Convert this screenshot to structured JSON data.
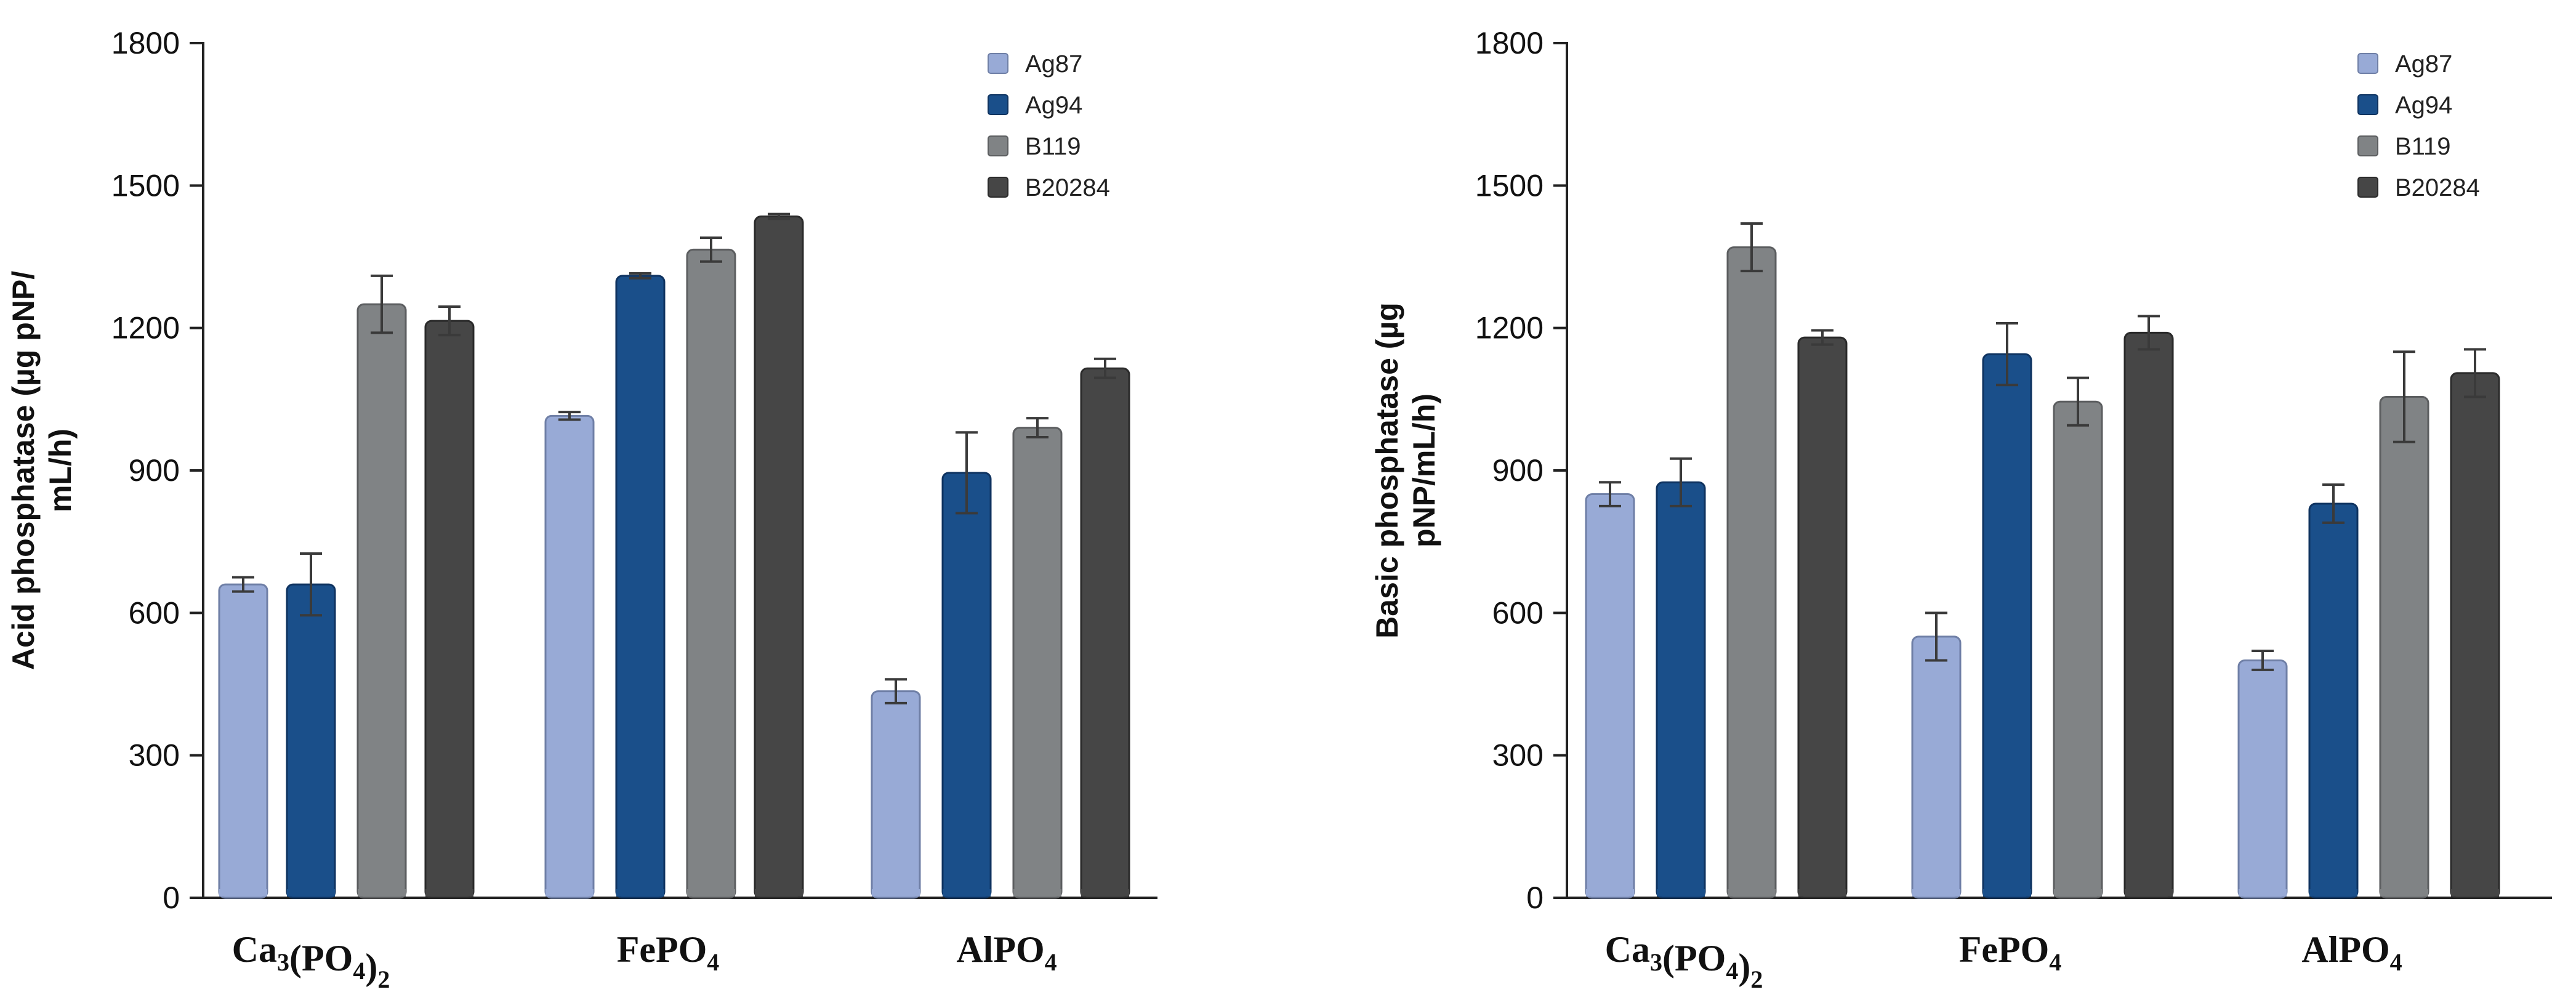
{
  "chart_data": [
    {
      "type": "bar",
      "title": "",
      "xlabel": "",
      "ylabel_lines": [
        "Acid phosphatase (µg pNP/",
        "mL/h)"
      ],
      "categories": [
        "Ca3(PO4)2",
        "FePO4",
        "AlPO4"
      ],
      "category_labels": [
        [
          {
            "t": "Ca",
            "s": ""
          },
          {
            "t": "3",
            "s": "sub"
          },
          {
            "t": "(PO",
            "s": ""
          },
          {
            "t": "4",
            "s": "sub"
          },
          {
            "t": ")",
            "s": ""
          },
          {
            "t": "2",
            "s": "sub"
          }
        ],
        [
          {
            "t": "FePO",
            "s": ""
          },
          {
            "t": "4",
            "s": "sub"
          }
        ],
        [
          {
            "t": "AlPO",
            "s": ""
          },
          {
            "t": "4",
            "s": "sub"
          }
        ]
      ],
      "ylim": [
        0,
        1800
      ],
      "yticks": [
        0,
        300,
        600,
        900,
        1200,
        1500,
        1800
      ],
      "ytick_labels": [
        "0",
        "300",
        "600",
        "900",
        "1200",
        "1500",
        "1800"
      ],
      "legend_position": "top-right",
      "series": [
        {
          "name": "Ag87",
          "color": "#98aad6",
          "values": [
            660,
            1015,
            435
          ],
          "errors": [
            15,
            8,
            25
          ]
        },
        {
          "name": "Ag94",
          "color": "#1a4f8a",
          "values": [
            660,
            1310,
            895
          ],
          "errors": [
            65,
            5,
            85
          ]
        },
        {
          "name": "B119",
          "color": "#808385",
          "values": [
            1250,
            1365,
            990
          ],
          "errors": [
            60,
            25,
            20
          ]
        },
        {
          "name": "B20284",
          "color": "#464646",
          "values": [
            1215,
            1435,
            1115
          ],
          "errors": [
            30,
            5,
            20
          ]
        }
      ]
    },
    {
      "type": "bar",
      "title": "",
      "xlabel": "",
      "ylabel_lines": [
        "Basic phosphatase (µg",
        "pNP/mL/h)"
      ],
      "categories": [
        "Ca3(PO4)2",
        "FePO4",
        "AlPO4"
      ],
      "category_labels": [
        [
          {
            "t": "Ca",
            "s": ""
          },
          {
            "t": "3",
            "s": "sub"
          },
          {
            "t": "(PO",
            "s": ""
          },
          {
            "t": "4",
            "s": "sub"
          },
          {
            "t": ")",
            "s": ""
          },
          {
            "t": "2",
            "s": "sub"
          }
        ],
        [
          {
            "t": "FePO",
            "s": ""
          },
          {
            "t": "4",
            "s": "sub"
          }
        ],
        [
          {
            "t": "AlPO",
            "s": ""
          },
          {
            "t": "4",
            "s": "sub"
          }
        ]
      ],
      "ylim": [
        0,
        1800
      ],
      "yticks": [
        0,
        300,
        600,
        900,
        1200,
        1500,
        1800
      ],
      "ytick_labels": [
        "0",
        "300",
        "600",
        "900",
        "1200",
        "1500",
        "1800"
      ],
      "legend_position": "top-right",
      "series": [
        {
          "name": "Ag87",
          "color": "#98aad6",
          "values": [
            850,
            550,
            500
          ],
          "errors": [
            25,
            50,
            20
          ]
        },
        {
          "name": "Ag94",
          "color": "#1a4f8a",
          "values": [
            875,
            1145,
            830
          ],
          "errors": [
            50,
            65,
            40
          ]
        },
        {
          "name": "B119",
          "color": "#808385",
          "values": [
            1370,
            1045,
            1055
          ],
          "errors": [
            50,
            50,
            95
          ]
        },
        {
          "name": "B20284",
          "color": "#464646",
          "values": [
            1180,
            1190,
            1105
          ],
          "errors": [
            15,
            35,
            50
          ]
        }
      ]
    }
  ]
}
